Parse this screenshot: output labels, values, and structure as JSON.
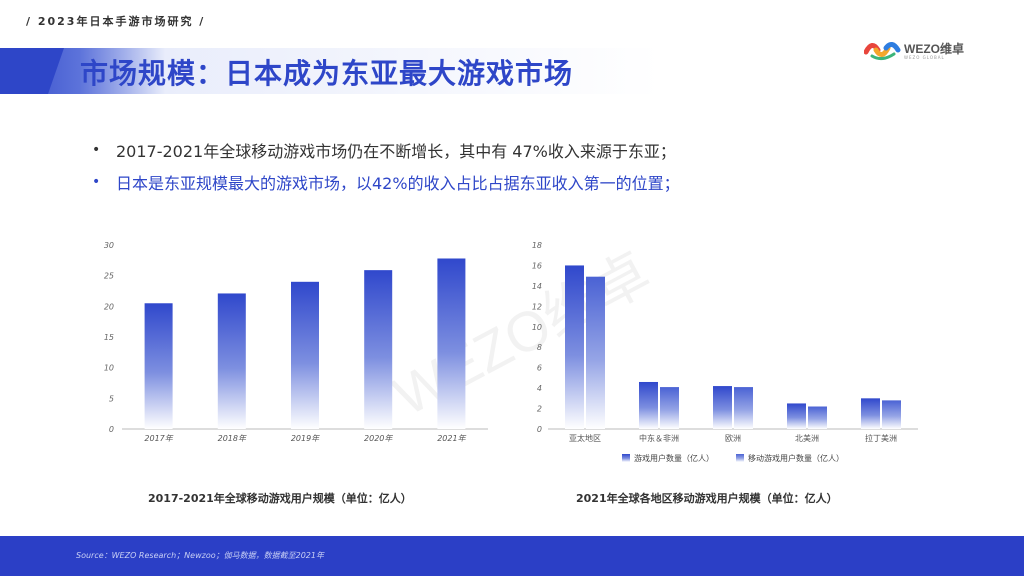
{
  "header": {
    "tag": "/ 2023年日本手游市场研究 /",
    "logo_text": "WEZO维卓",
    "logo_sub": "WEZO GLOBAL",
    "title": "市场规模：日本成为东亚最大游戏市场"
  },
  "bullets": [
    {
      "symbol": "•",
      "text": "2017-2021年全球移动游戏市场仍在不断增长，其中有 47%收入来源于东亚；"
    },
    {
      "symbol": "•",
      "text": "日本是东亚规模最大的游戏市场，以42%的收入占比占据东亚收入第一的位置；"
    }
  ],
  "watermark": "WEZO维卓",
  "colors": {
    "brand_blue": "#2e46c8",
    "bar_dark": "#3048cc",
    "bar_light": "#ffffff",
    "footer": "#2b3fc6"
  },
  "chart_data": [
    {
      "type": "bar",
      "title": "2017-2021年全球移动游戏用户规模（单位：亿人）",
      "categories": [
        "2017年",
        "2018年",
        "2019年",
        "2020年",
        "2021年"
      ],
      "values": [
        20.5,
        22.1,
        24.0,
        25.9,
        27.8
      ],
      "ylim": [
        0,
        30
      ],
      "yticks": [
        0,
        5,
        10,
        15,
        20,
        25,
        30
      ],
      "grid": false
    },
    {
      "type": "bar",
      "title": "2021年全球各地区移动游戏用户规模（单位：亿人）",
      "categories": [
        "亚太地区",
        "中东＆非洲",
        "欧洲",
        "北美洲",
        "拉丁美洲"
      ],
      "series": [
        {
          "name": "游戏用户数量（亿人）",
          "values": [
            16.0,
            4.6,
            4.2,
            2.5,
            3.0
          ]
        },
        {
          "name": "移动游戏用户数量（亿人）",
          "values": [
            14.9,
            4.1,
            4.1,
            2.2,
            2.8
          ]
        }
      ],
      "ylim": [
        0,
        18
      ],
      "yticks": [
        0,
        2,
        4,
        6,
        8,
        10,
        12,
        14,
        16,
        18
      ],
      "legend": "bottom",
      "grid": false
    }
  ],
  "footer": {
    "source": "Source：WEZO Research；Newzoo；伽马数据，数据截至2021年"
  }
}
